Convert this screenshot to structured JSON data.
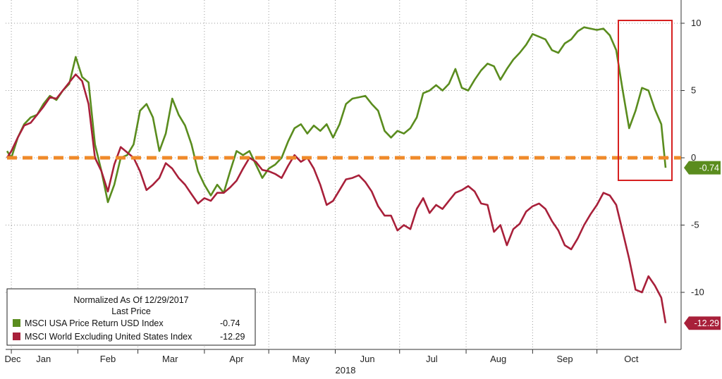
{
  "chart_data": {
    "type": "line",
    "ylim": [
      -14,
      11
    ],
    "y_ticks": [
      10,
      5,
      0,
      -5,
      -10
    ],
    "y_tick_labels": [
      "10",
      "5",
      "0",
      "-5",
      "-10"
    ],
    "x_tick_labels": [
      "Dec",
      "Jan",
      "Feb",
      "Mar",
      "Apr",
      "May",
      "Jun",
      "Jul",
      "Aug",
      "Sep",
      "Oct"
    ],
    "year_label": "2018",
    "grid": true,
    "legend": {
      "title": "Normalized As Of 12/29/2017",
      "subtitle": "Last Price",
      "placement": "bottom-left"
    },
    "series": [
      {
        "name": "MSCI USA Price Return USD Index",
        "last_value": "-0.74",
        "color": "#5a8c1e",
        "points": [
          [
            0,
            0.5
          ],
          [
            2,
            0
          ],
          [
            5,
            1.5
          ],
          [
            8,
            2.5
          ],
          [
            11,
            3
          ],
          [
            14,
            3.2
          ],
          [
            17,
            4
          ],
          [
            20,
            4.6
          ],
          [
            23,
            4.3
          ],
          [
            26,
            5
          ],
          [
            29,
            5.5
          ],
          [
            32,
            7.5
          ],
          [
            35,
            6
          ],
          [
            38,
            5.6
          ],
          [
            41,
            1
          ],
          [
            44,
            -1
          ],
          [
            47,
            -3.3
          ],
          [
            50,
            -2
          ],
          [
            53,
            0
          ],
          [
            56,
            0.2
          ],
          [
            59,
            1
          ],
          [
            62,
            3.5
          ],
          [
            65,
            4
          ],
          [
            68,
            3
          ],
          [
            71,
            0.5
          ],
          [
            74,
            1.8
          ],
          [
            77,
            4.4
          ],
          [
            80,
            3.2
          ],
          [
            83,
            2.4
          ],
          [
            86,
            1
          ],
          [
            89,
            -1
          ],
          [
            92,
            -2
          ],
          [
            95,
            -2.8
          ],
          [
            98,
            -2
          ],
          [
            101,
            -2.6
          ],
          [
            104,
            -1
          ],
          [
            107,
            0.5
          ],
          [
            110,
            0.2
          ],
          [
            113,
            0.5
          ],
          [
            116,
            -0.5
          ],
          [
            119,
            -1.5
          ],
          [
            122,
            -0.8
          ],
          [
            125,
            -0.5
          ],
          [
            128,
            0
          ],
          [
            131,
            1.2
          ],
          [
            134,
            2.2
          ],
          [
            137,
            2.5
          ],
          [
            140,
            1.8
          ],
          [
            143,
            2.4
          ],
          [
            146,
            2
          ],
          [
            149,
            2.5
          ],
          [
            152,
            1.5
          ],
          [
            155,
            2.5
          ],
          [
            158,
            4
          ],
          [
            161,
            4.4
          ],
          [
            164,
            4.5
          ],
          [
            167,
            4.6
          ],
          [
            170,
            4
          ],
          [
            173,
            3.5
          ],
          [
            176,
            2
          ],
          [
            179,
            1.5
          ],
          [
            182,
            2
          ],
          [
            185,
            1.8
          ],
          [
            188,
            2.2
          ],
          [
            191,
            3
          ],
          [
            194,
            4.8
          ],
          [
            197,
            5
          ],
          [
            200,
            5.4
          ],
          [
            203,
            5
          ],
          [
            206,
            5.5
          ],
          [
            209,
            6.6
          ],
          [
            212,
            5.2
          ],
          [
            215,
            5
          ],
          [
            218,
            5.8
          ],
          [
            221,
            6.5
          ],
          [
            224,
            7
          ],
          [
            227,
            6.8
          ],
          [
            230,
            5.8
          ],
          [
            233,
            6.6
          ],
          [
            236,
            7.3
          ],
          [
            239,
            7.8
          ],
          [
            242,
            8.4
          ],
          [
            245,
            9.2
          ],
          [
            248,
            9
          ],
          [
            251,
            8.8
          ],
          [
            254,
            8
          ],
          [
            257,
            7.8
          ],
          [
            260,
            8.5
          ],
          [
            263,
            8.8
          ],
          [
            266,
            9.4
          ],
          [
            269,
            9.7
          ],
          [
            272,
            9.6
          ],
          [
            275,
            9.5
          ],
          [
            278,
            9.6
          ],
          [
            281,
            9.1
          ],
          [
            284,
            8
          ],
          [
            287,
            5
          ],
          [
            290,
            2.2
          ],
          [
            293,
            3.5
          ],
          [
            296,
            5.2
          ],
          [
            299,
            5
          ],
          [
            302,
            3.6
          ],
          [
            305,
            2.5
          ],
          [
            307,
            -0.74
          ]
        ]
      },
      {
        "name": "MSCI World Excluding United States Index",
        "last_value": "-12.29",
        "color": "#a8203a",
        "points": [
          [
            0,
            0
          ],
          [
            2,
            0.5
          ],
          [
            5,
            1.5
          ],
          [
            8,
            2.4
          ],
          [
            11,
            2.6
          ],
          [
            14,
            3.2
          ],
          [
            17,
            3.8
          ],
          [
            20,
            4.5
          ],
          [
            23,
            4.4
          ],
          [
            26,
            5
          ],
          [
            29,
            5.6
          ],
          [
            32,
            6.2
          ],
          [
            35,
            5.7
          ],
          [
            38,
            4
          ],
          [
            41,
            0
          ],
          [
            44,
            -1
          ],
          [
            47,
            -2.5
          ],
          [
            50,
            -0.5
          ],
          [
            53,
            0.8
          ],
          [
            56,
            0.4
          ],
          [
            59,
            0
          ],
          [
            62,
            -1
          ],
          [
            65,
            -2.4
          ],
          [
            68,
            -2
          ],
          [
            71,
            -1.5
          ],
          [
            74,
            -0.4
          ],
          [
            77,
            -0.8
          ],
          [
            80,
            -1.5
          ],
          [
            83,
            -2
          ],
          [
            86,
            -2.7
          ],
          [
            89,
            -3.4
          ],
          [
            92,
            -3
          ],
          [
            95,
            -3.2
          ],
          [
            98,
            -2.6
          ],
          [
            101,
            -2.6
          ],
          [
            104,
            -2.2
          ],
          [
            107,
            -1.7
          ],
          [
            110,
            -0.8
          ],
          [
            113,
            0
          ],
          [
            116,
            -0.3
          ],
          [
            119,
            -0.9
          ],
          [
            122,
            -1
          ],
          [
            125,
            -1.2
          ],
          [
            128,
            -1.5
          ],
          [
            131,
            -0.6
          ],
          [
            134,
            0.2
          ],
          [
            137,
            -0.3
          ],
          [
            140,
            0
          ],
          [
            143,
            -0.8
          ],
          [
            146,
            -2
          ],
          [
            149,
            -3.5
          ],
          [
            152,
            -3.2
          ],
          [
            155,
            -2.4
          ],
          [
            158,
            -1.6
          ],
          [
            161,
            -1.5
          ],
          [
            164,
            -1.3
          ],
          [
            167,
            -1.8
          ],
          [
            170,
            -2.5
          ],
          [
            173,
            -3.6
          ],
          [
            176,
            -4.3
          ],
          [
            179,
            -4.3
          ],
          [
            182,
            -5.4
          ],
          [
            185,
            -5
          ],
          [
            188,
            -5.3
          ],
          [
            191,
            -3.8
          ],
          [
            194,
            -3
          ],
          [
            197,
            -4.1
          ],
          [
            200,
            -3.5
          ],
          [
            203,
            -3.8
          ],
          [
            206,
            -3.2
          ],
          [
            209,
            -2.6
          ],
          [
            212,
            -2.4
          ],
          [
            215,
            -2.1
          ],
          [
            218,
            -2.5
          ],
          [
            221,
            -3.4
          ],
          [
            224,
            -3.5
          ],
          [
            227,
            -5.5
          ],
          [
            230,
            -5
          ],
          [
            233,
            -6.5
          ],
          [
            236,
            -5.3
          ],
          [
            239,
            -4.9
          ],
          [
            242,
            -4
          ],
          [
            245,
            -3.6
          ],
          [
            248,
            -3.4
          ],
          [
            251,
            -3.8
          ],
          [
            254,
            -4.7
          ],
          [
            257,
            -5.4
          ],
          [
            260,
            -6.5
          ],
          [
            263,
            -6.8
          ],
          [
            266,
            -6
          ],
          [
            269,
            -5
          ],
          [
            272,
            -4.2
          ],
          [
            275,
            -3.5
          ],
          [
            278,
            -2.6
          ],
          [
            281,
            -2.8
          ],
          [
            284,
            -3.5
          ],
          [
            287,
            -5.5
          ],
          [
            290,
            -7.5
          ],
          [
            293,
            -9.8
          ],
          [
            296,
            -10
          ],
          [
            299,
            -8.8
          ],
          [
            302,
            -9.5
          ],
          [
            305,
            -10.4
          ],
          [
            307,
            -12.29
          ]
        ]
      }
    ],
    "reference_line": {
      "y": 0,
      "color": "#ef8a2a",
      "style": "dashed"
    },
    "highlight_box_color": "#d62020"
  }
}
